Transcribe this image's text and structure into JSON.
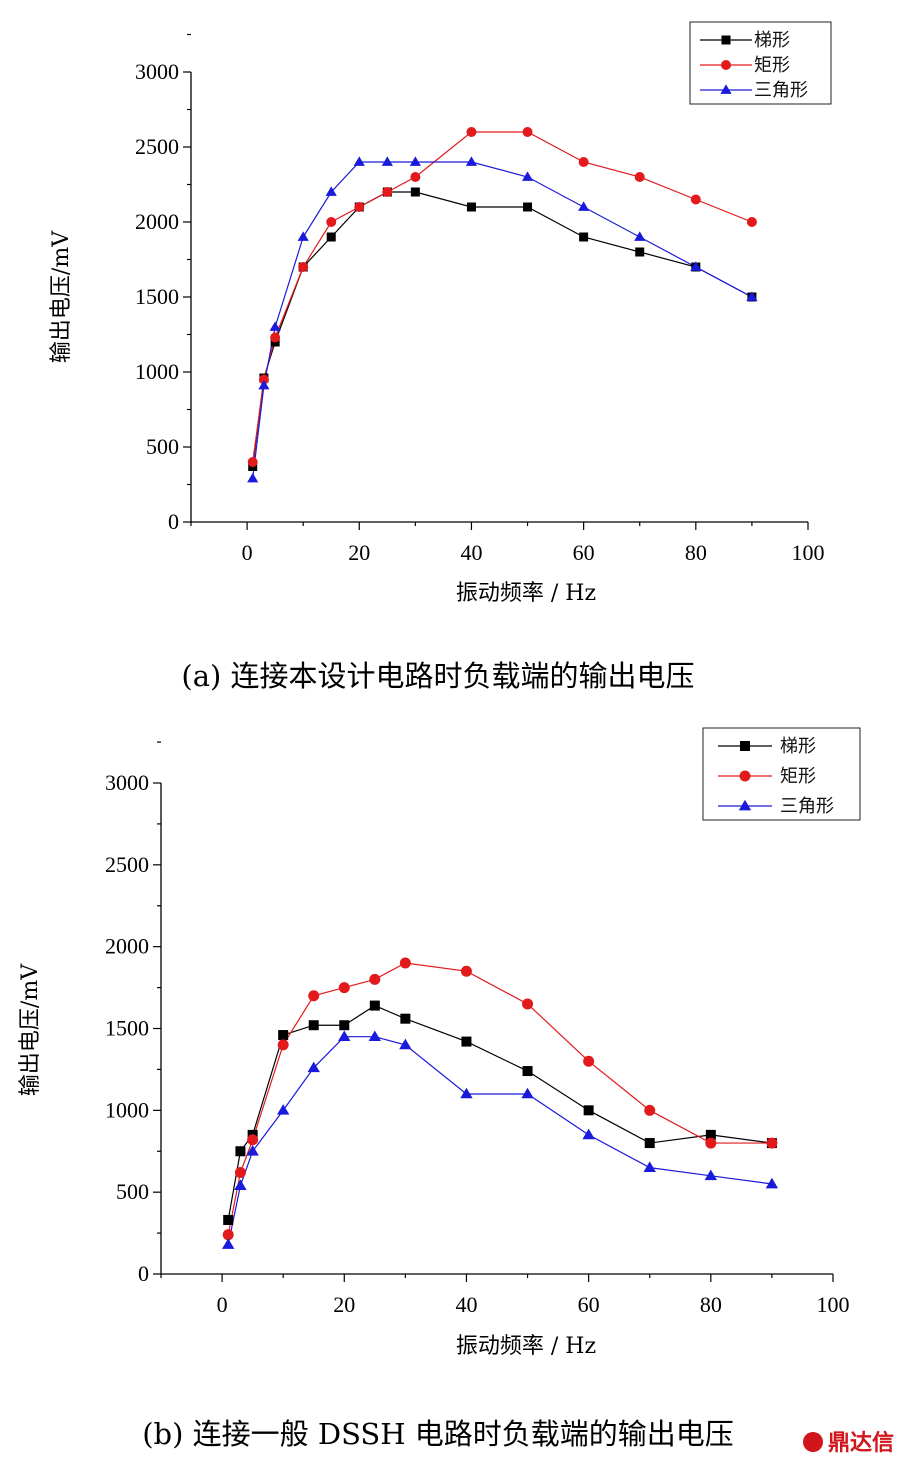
{
  "chart_data": [
    {
      "type": "line",
      "xlabel": "振动频率  / Hz",
      "ylabel": "输出电压/mV",
      "caption": "(a)  连接本设计电路时负载端的输出电压",
      "xlim": [
        -10,
        100
      ],
      "ylim": [
        0,
        3000
      ],
      "xticks": [
        "0",
        "20",
        "40",
        "60",
        "80",
        "100"
      ],
      "yticks": [
        "0",
        "500",
        "1000",
        "1500",
        "2000",
        "2500",
        "3000"
      ],
      "legend_position": "top-right",
      "grid": false,
      "series": [
        {
          "name": "梯形",
          "color": "#000000",
          "marker": "square",
          "x": [
            1,
            3,
            5,
            10,
            15,
            20,
            25,
            30,
            40,
            50,
            60,
            70,
            80,
            90
          ],
          "y": [
            370,
            960,
            1200,
            1700,
            1900,
            2100,
            2200,
            2200,
            2100,
            2100,
            1900,
            1800,
            1700,
            1500
          ]
        },
        {
          "name": "矩形",
          "color": "#e31a1c",
          "marker": "circle",
          "x": [
            1,
            3,
            5,
            10,
            15,
            20,
            25,
            30,
            40,
            50,
            60,
            70,
            80,
            90
          ],
          "y": [
            400,
            950,
            1230,
            1700,
            2000,
            2100,
            2200,
            2300,
            2600,
            2600,
            2400,
            2300,
            2150,
            2000
          ]
        },
        {
          "name": "三角形",
          "color": "#1a1adb",
          "marker": "triangle",
          "x": [
            1,
            3,
            5,
            10,
            15,
            20,
            25,
            30,
            40,
            50,
            60,
            70,
            80,
            90
          ],
          "y": [
            290,
            910,
            1300,
            1900,
            2200,
            2400,
            2400,
            2400,
            2400,
            2300,
            2100,
            1900,
            1700,
            1500
          ]
        }
      ]
    },
    {
      "type": "line",
      "xlabel": "振动频率  / Hz",
      "ylabel": "输出电压/mV",
      "caption": "(b)  连接一般 DSSH 电路时负载端的输出电压",
      "xlim": [
        -10,
        100
      ],
      "ylim": [
        0,
        3000
      ],
      "xticks": [
        "0",
        "20",
        "40",
        "60",
        "80",
        "100"
      ],
      "yticks": [
        "0",
        "500",
        "1000",
        "1500",
        "2000",
        "2500",
        "3000"
      ],
      "legend_position": "top-right",
      "grid": false,
      "series": [
        {
          "name": "梯形",
          "color": "#000000",
          "marker": "square",
          "x": [
            1,
            3,
            5,
            10,
            15,
            20,
            25,
            30,
            40,
            50,
            60,
            70,
            80,
            90
          ],
          "y": [
            330,
            750,
            850,
            1460,
            1520,
            1520,
            1640,
            1560,
            1420,
            1240,
            1000,
            800,
            850,
            800
          ]
        },
        {
          "name": "矩形",
          "color": "#e31a1c",
          "marker": "circle",
          "x": [
            1,
            3,
            5,
            10,
            15,
            20,
            25,
            30,
            40,
            50,
            60,
            70,
            80,
            90
          ],
          "y": [
            240,
            620,
            820,
            1400,
            1700,
            1750,
            1800,
            1900,
            1850,
            1650,
            1300,
            1000,
            800,
            800
          ]
        },
        {
          "name": "三角形",
          "color": "#1a1adb",
          "marker": "triangle",
          "x": [
            1,
            3,
            5,
            10,
            15,
            20,
            25,
            30,
            40,
            50,
            60,
            70,
            80,
            90
          ],
          "y": [
            180,
            540,
            750,
            1000,
            1260,
            1450,
            1450,
            1400,
            1100,
            1100,
            850,
            650,
            600,
            550
          ]
        }
      ]
    }
  ],
  "watermark": {
    "text": "鼎达信",
    "color": "#d0151c"
  }
}
